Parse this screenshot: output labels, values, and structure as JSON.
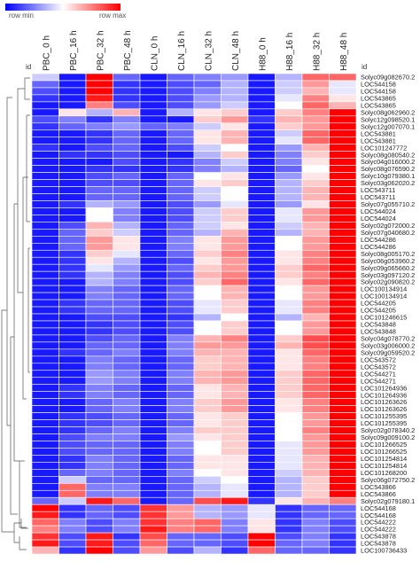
{
  "chart_data": {
    "type": "heatmap",
    "scale_min_label": "row min",
    "scale_max_label": "row max",
    "row_header": "id",
    "row_header_right": "id",
    "color_range": [
      -1,
      1
    ],
    "colormap": [
      "#0000ff",
      "#ffffff",
      "#ff0000"
    ],
    "columns": [
      "PBC_0 h",
      "PBC_16 h",
      "PBC_32 h",
      "PBC_48 h",
      "CLN_0 h",
      "CLN_16 h",
      "CLN_32 h",
      "CLN_48 h",
      "H88_0 h",
      "H88_16 h",
      "H88_32 h",
      "H88_48 h"
    ],
    "rows": [
      "Solyc09g082670.2",
      "LOC544158",
      "LOC544158",
      "LOC543865",
      "LOC543865",
      "Solyc08g062960.2",
      "Solyc12g098520.1",
      "Solyc12g007070.1",
      "LOC543881",
      "LOC543881",
      "LOC101247772",
      "Solyc08g080540.2",
      "Solyc04g016000.2",
      "Solyc08g076590.2",
      "Solyc10g079380.1",
      "Solyc03g062020.2",
      "LOC543711",
      "LOC543711",
      "Solyc07g055710.2",
      "LOC544024",
      "LOC544024",
      "Solyc02g072000.2",
      "Solyc07g040680.2",
      "LOC544286",
      "LOC544286",
      "Solyc08g005170.2",
      "Solyc06g053960.2",
      "Solyc09g065660.2",
      "Solyc03g097120.2",
      "Solyc02g090820.2",
      "LOC100134914",
      "LOC100134914",
      "LOC544205",
      "LOC544205",
      "LOC101246615",
      "LOC543848",
      "LOC543848",
      "Solyc04g078770.2",
      "Solyc03g006000.2",
      "Solyc09g059520.2",
      "LOC543572",
      "LOC543572",
      "LOC544271",
      "LOC544271",
      "LOC101264936",
      "LOC101264936",
      "LOC101263626",
      "LOC101263626",
      "LOC101255395",
      "LOC101255395",
      "Solyc02g078340.2",
      "Solyc09g009100.2",
      "LOC101266525",
      "LOC101266525",
      "LOC101254814",
      "LOC101254814",
      "LOC101268200",
      "Solyc06g072750.2",
      "LOC543866",
      "LOC543866",
      "Solyc02g079180.1",
      "LOC544168",
      "LOC544168",
      "LOC544222",
      "LOC544222",
      "LOC543878",
      "LOC543878",
      "LOC100736433"
    ],
    "values": [
      [
        -0.2,
        -0.9,
        1,
        -0.6,
        -0.9,
        -0.6,
        -0.5,
        -0.4,
        -0.9,
        -0.3,
        0.6,
        0.6
      ],
      [
        -0.6,
        -0.9,
        1,
        -0.8,
        -0.9,
        -0.7,
        -0.6,
        -0.3,
        -0.9,
        -0.2,
        0.4,
        -0.1
      ],
      [
        -0.7,
        -0.9,
        1,
        -0.8,
        -0.9,
        -0.7,
        -0.5,
        -0.3,
        -0.9,
        -0.2,
        0.3,
        -0.1
      ],
      [
        -0.8,
        -0.9,
        0.9,
        -0.8,
        -0.9,
        -0.7,
        -0.4,
        -0.3,
        -0.9,
        -0.1,
        0.5,
        0.1
      ],
      [
        -0.9,
        -0.9,
        0.5,
        -0.7,
        -0.9,
        -0.7,
        -0.4,
        -0.2,
        -0.9,
        0,
        0.6,
        0.3
      ],
      [
        -0.9,
        0.1,
        -0.3,
        0.3,
        -0.9,
        -0.3,
        0.1,
        0.2,
        -0.9,
        0.2,
        0.5,
        1
      ],
      [
        -0.7,
        -0.5,
        -0.8,
        -0.5,
        -0.9,
        -0.9,
        0.2,
        0.4,
        -0.8,
        0.3,
        0.4,
        1
      ],
      [
        -0.8,
        -0.6,
        -0.5,
        -0.4,
        -0.6,
        -0.5,
        -0.2,
        0.1,
        -0.9,
        0.2,
        0.4,
        1
      ],
      [
        -0.9,
        -0.9,
        -0.8,
        -0.6,
        -0.9,
        -0.6,
        0.1,
        0.3,
        -0.9,
        -0.2,
        0.6,
        1
      ],
      [
        -0.9,
        -0.9,
        -0.8,
        -0.6,
        -0.9,
        -0.6,
        0.1,
        0.3,
        -0.9,
        -0.1,
        0.6,
        1
      ],
      [
        -0.8,
        -0.9,
        -0.7,
        -0.6,
        -0.9,
        -0.7,
        -0.2,
        0,
        -0.9,
        -0.4,
        0.3,
        1
      ],
      [
        -0.9,
        -0.8,
        -0.8,
        -0.7,
        -0.9,
        -0.9,
        -0.3,
        0.2,
        -0.9,
        -0.5,
        0.2,
        1
      ],
      [
        -0.9,
        -0.9,
        -0.9,
        -0.7,
        -0.9,
        -0.8,
        -0.5,
        -0.2,
        -0.9,
        -0.5,
        0.1,
        1
      ],
      [
        -0.9,
        -0.9,
        -0.8,
        -0.8,
        -0.9,
        -0.8,
        -0.5,
        -0.3,
        -0.9,
        -0.6,
        0,
        1
      ],
      [
        -0.9,
        -0.9,
        -0.7,
        -0.6,
        -0.9,
        -0.6,
        0,
        0.1,
        -0.9,
        -0.4,
        0.1,
        1
      ],
      [
        -0.9,
        -0.9,
        -0.7,
        -0.7,
        -0.9,
        -0.6,
        0.1,
        0.2,
        -0.9,
        -0.3,
        0.2,
        1
      ],
      [
        -0.9,
        -0.9,
        -0.6,
        -0.6,
        -0.9,
        -0.6,
        -0.2,
        0,
        -0.9,
        -0.3,
        0.3,
        1
      ],
      [
        -0.9,
        -0.9,
        -0.6,
        -0.6,
        -0.9,
        -0.6,
        -0.2,
        0,
        -0.9,
        -0.3,
        0.3,
        1
      ],
      [
        -0.9,
        -0.8,
        -0.3,
        -0.4,
        -0.9,
        -0.7,
        -0.4,
        -0.1,
        -0.9,
        -0.4,
        0.1,
        1
      ],
      [
        -0.9,
        -0.9,
        0,
        -0.5,
        -0.9,
        -0.7,
        -0.2,
        0.2,
        -0.9,
        -0.1,
        0.4,
        1
      ],
      [
        -0.9,
        -0.9,
        0,
        -0.5,
        -0.9,
        -0.7,
        -0.2,
        0.2,
        -0.9,
        -0.1,
        0.4,
        1
      ],
      [
        -0.9,
        -0.7,
        0.3,
        -0.3,
        -0.9,
        -0.6,
        -0.2,
        0.1,
        -0.9,
        -0.2,
        0.3,
        1
      ],
      [
        -0.9,
        -0.6,
        0.2,
        -0.2,
        -0.9,
        -0.6,
        -0.3,
        0.3,
        -0.9,
        -0.3,
        0.3,
        1
      ],
      [
        -0.9,
        -0.6,
        0.4,
        0.1,
        -0.9,
        -0.5,
        0.1,
        0.4,
        -0.9,
        0,
        0.4,
        1
      ],
      [
        -0.9,
        -0.6,
        0.4,
        0.1,
        -0.9,
        -0.5,
        0.1,
        0.4,
        -0.9,
        0,
        0.4,
        1
      ],
      [
        -0.9,
        -0.8,
        0.2,
        -0.1,
        -0.9,
        -0.6,
        0.2,
        0.5,
        -0.9,
        0.1,
        0.5,
        1
      ],
      [
        -0.9,
        -0.8,
        0.1,
        -0.3,
        -0.9,
        -0.7,
        0.1,
        0.4,
        -0.9,
        0.1,
        0.5,
        1
      ],
      [
        -0.9,
        -0.8,
        -0.1,
        -0.4,
        -0.9,
        -0.6,
        0.2,
        0.4,
        -0.9,
        0.2,
        0.6,
        1
      ],
      [
        -0.9,
        -0.8,
        -0.3,
        -0.5,
        -0.9,
        -0.7,
        0.3,
        0.5,
        -0.9,
        0.2,
        0.5,
        1
      ],
      [
        -0.9,
        -0.9,
        -0.3,
        -0.5,
        -0.9,
        -0.7,
        0.2,
        0.6,
        -0.9,
        0.1,
        0.6,
        1
      ],
      [
        -0.9,
        -0.9,
        -0.5,
        -0.6,
        -0.9,
        -0.6,
        0,
        0.3,
        -0.9,
        0,
        0.4,
        1
      ],
      [
        -0.9,
        -0.9,
        -0.5,
        -0.6,
        -0.9,
        -0.6,
        0,
        0.3,
        -0.9,
        0,
        0.4,
        1
      ],
      [
        -0.9,
        -0.8,
        -0.6,
        -0.6,
        -0.9,
        -0.7,
        -0.1,
        0.2,
        -0.9,
        -0.1,
        0.5,
        1
      ],
      [
        -0.9,
        -0.8,
        -0.6,
        -0.6,
        -0.9,
        -0.7,
        -0.1,
        0.2,
        -0.9,
        -0.1,
        0.5,
        1
      ],
      [
        -0.9,
        -0.9,
        -0.7,
        -0.7,
        -0.9,
        -0.8,
        -0.3,
        0,
        -0.9,
        -0.3,
        0.3,
        1
      ],
      [
        -0.9,
        -0.9,
        -0.8,
        -0.7,
        -0.9,
        -0.7,
        0,
        0.2,
        -0.9,
        0,
        0.4,
        1
      ],
      [
        -0.9,
        -0.9,
        -0.8,
        -0.7,
        -0.9,
        -0.7,
        0,
        0.2,
        -0.9,
        0,
        0.4,
        1
      ],
      [
        -0.9,
        -0.9,
        -0.7,
        -0.6,
        -0.9,
        -0.5,
        0.3,
        0.5,
        -0.9,
        0.2,
        0.7,
        1
      ],
      [
        -0.9,
        -0.9,
        -0.6,
        -0.6,
        -0.9,
        -0.5,
        0.4,
        0.4,
        -0.9,
        0.3,
        0.7,
        1
      ],
      [
        -0.9,
        -0.8,
        -0.6,
        -0.5,
        -0.9,
        -0.5,
        0.3,
        0.3,
        -0.9,
        0.1,
        0.6,
        1
      ],
      [
        -0.9,
        -0.9,
        -0.5,
        -0.6,
        -0.9,
        -0.6,
        0.2,
        0.3,
        -0.9,
        0.1,
        0.5,
        1
      ],
      [
        -0.9,
        -0.9,
        -0.5,
        -0.6,
        -0.9,
        -0.6,
        0.2,
        0.3,
        -0.9,
        0.1,
        0.5,
        1
      ],
      [
        -0.9,
        -0.9,
        -0.4,
        -0.5,
        -0.9,
        -0.5,
        0.3,
        0.4,
        -0.9,
        0.2,
        0.6,
        1
      ],
      [
        -0.9,
        -0.9,
        -0.4,
        -0.5,
        -0.9,
        -0.5,
        0.3,
        0.4,
        -0.9,
        0.2,
        0.6,
        1
      ],
      [
        -0.9,
        -0.8,
        -0.5,
        -0.6,
        -0.9,
        -0.6,
        0.1,
        0.3,
        -0.9,
        0.2,
        0.6,
        1
      ],
      [
        -0.9,
        -0.8,
        -0.5,
        -0.6,
        -0.9,
        -0.6,
        0.1,
        0.3,
        -0.9,
        0.2,
        0.6,
        1
      ],
      [
        -0.9,
        -0.9,
        -0.6,
        -0.5,
        -0.9,
        -0.5,
        0.2,
        0.4,
        -0.9,
        0.1,
        0.5,
        1
      ],
      [
        -0.9,
        -0.9,
        -0.6,
        -0.5,
        -0.9,
        -0.5,
        0.2,
        0.4,
        -0.9,
        0.1,
        0.5,
        1
      ],
      [
        -0.9,
        -0.8,
        -0.7,
        -0.6,
        -0.9,
        -0.6,
        0.1,
        0.2,
        -0.9,
        0,
        0.4,
        1
      ],
      [
        -0.9,
        -0.8,
        -0.7,
        -0.6,
        -0.9,
        -0.6,
        0.1,
        0.2,
        -0.9,
        0,
        0.4,
        1
      ],
      [
        -0.9,
        -0.8,
        -0.6,
        -0.5,
        -0.9,
        -0.5,
        0.2,
        0.2,
        -0.9,
        0,
        0.5,
        1
      ],
      [
        -0.9,
        -0.7,
        -0.5,
        -0.5,
        -0.9,
        -0.4,
        0.1,
        0.2,
        -0.9,
        0,
        0.4,
        1
      ],
      [
        -0.9,
        -0.7,
        -0.6,
        -0.6,
        -0.9,
        -0.5,
        0,
        0.2,
        -0.9,
        -0.1,
        0.4,
        1
      ],
      [
        -0.9,
        -0.7,
        -0.6,
        -0.6,
        -0.9,
        -0.5,
        0,
        0.2,
        -0.9,
        -0.1,
        0.4,
        1
      ],
      [
        -0.9,
        -0.8,
        -0.5,
        -0.6,
        -0.9,
        -0.6,
        0.1,
        0.1,
        -0.9,
        -0.1,
        0.3,
        1
      ],
      [
        -0.9,
        -0.8,
        -0.5,
        -0.6,
        -0.9,
        -0.6,
        0.1,
        0.1,
        -0.9,
        -0.1,
        0.3,
        1
      ],
      [
        -0.9,
        -0.6,
        -0.5,
        -0.6,
        -0.9,
        -0.5,
        0,
        0.1,
        -0.9,
        -0.2,
        0.3,
        1
      ],
      [
        -0.9,
        -0.2,
        -0.6,
        -0.6,
        -0.9,
        -0.6,
        -0.2,
        0,
        -0.9,
        -0.3,
        0.2,
        1
      ],
      [
        -0.9,
        0.6,
        -0.5,
        -0.5,
        -0.9,
        -0.6,
        -0.3,
        -0.1,
        -0.9,
        -0.3,
        0.2,
        1
      ],
      [
        -0.9,
        0.6,
        -0.5,
        -0.5,
        -0.9,
        -0.6,
        -0.3,
        -0.1,
        -0.9,
        -0.3,
        0.2,
        1
      ],
      [
        -0.6,
        -0.2,
        0.9,
        0.6,
        -0.9,
        -0.6,
        0.7,
        0.9,
        -0.8,
        0.1,
        0.3,
        0.5
      ],
      [
        1,
        -0.8,
        -0.6,
        -0.7,
        0.8,
        0.4,
        -0.3,
        -0.4,
        -0.1,
        -0.8,
        -0.6,
        -0.6
      ],
      [
        0.9,
        -0.8,
        -0.6,
        -0.7,
        0.8,
        0.4,
        -0.3,
        -0.4,
        -0.1,
        -0.8,
        -0.6,
        -0.6
      ],
      [
        0.6,
        -0.5,
        -0.7,
        -0.5,
        0.8,
        0.5,
        0.6,
        -0.5,
        0.1,
        -0.8,
        -0.5,
        -0.7
      ],
      [
        0.5,
        -0.5,
        -0.7,
        -0.5,
        0.9,
        0.5,
        0.6,
        -0.5,
        0.1,
        -0.8,
        -0.5,
        -0.7
      ],
      [
        0.8,
        -0.7,
        0.9,
        -0.8,
        0.7,
        -0.6,
        -0.6,
        -0.7,
        1,
        -0.7,
        -0.5,
        -0.8
      ],
      [
        0.9,
        -0.7,
        0.9,
        -0.7,
        0.6,
        -0.6,
        -0.6,
        -0.7,
        1,
        -0.6,
        -0.5,
        -0.8
      ],
      [
        0.3,
        -0.8,
        1,
        -0.7,
        0.4,
        -0.7,
        -0.3,
        -0.8,
        0.6,
        -0.6,
        -0.6,
        -0.8
      ]
    ]
  }
}
